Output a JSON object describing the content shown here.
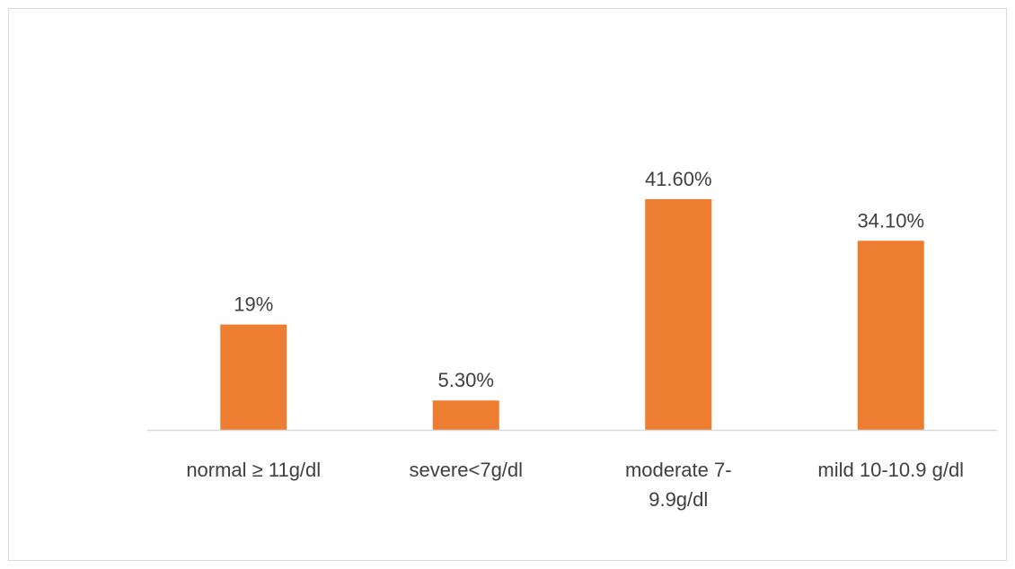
{
  "chart_data": {
    "type": "bar",
    "categories": [
      [
        "normal ≥ 11g/dl"
      ],
      [
        "severe<7g/dl"
      ],
      [
        "moderate 7-",
        "9.9g/dl"
      ],
      [
        "mild 10-10.9 g/dl"
      ]
    ],
    "values": [
      19,
      5.3,
      41.6,
      34.1
    ],
    "data_labels": [
      "19%",
      "5.30%",
      "41.60%",
      "34.10%"
    ],
    "title": "",
    "xlabel": "",
    "ylabel": "",
    "ylim": [
      0,
      50
    ],
    "grid": false,
    "legend": "none",
    "bar_color": "#ED7D31",
    "axis_color": "#D9D9D9",
    "text_color": "#404040"
  }
}
